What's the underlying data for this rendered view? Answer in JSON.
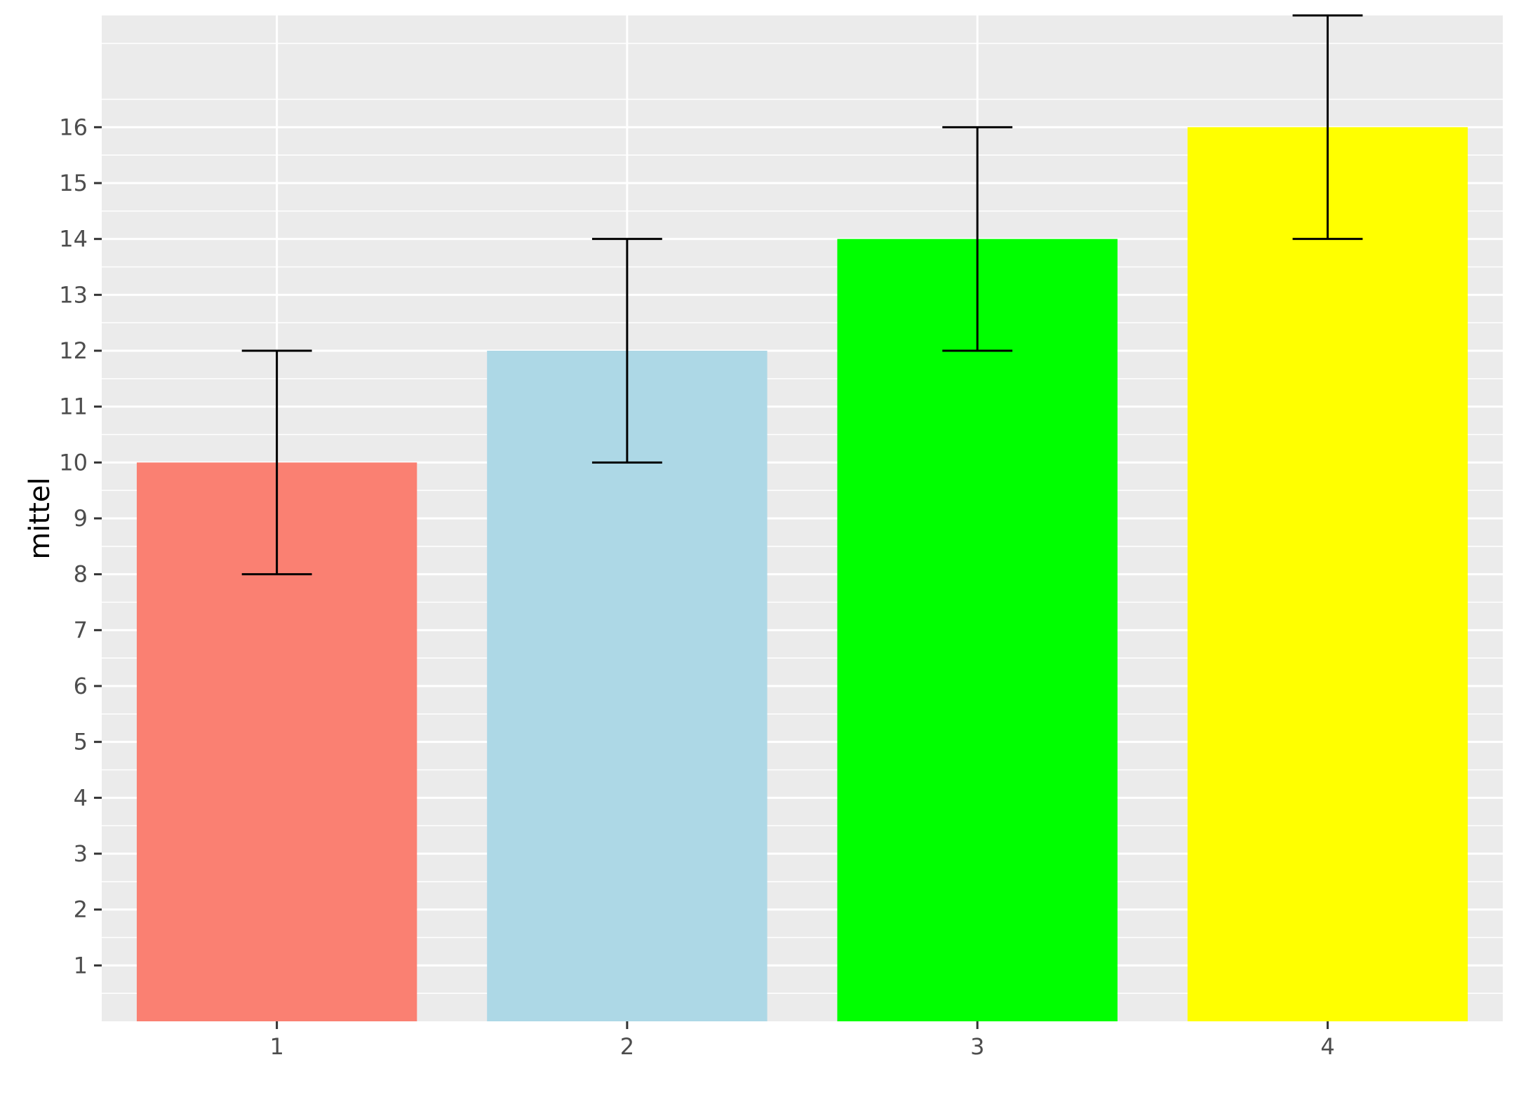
{
  "chart_data": {
    "type": "bar",
    "title": "",
    "xlabel": "",
    "ylabel": "mittel",
    "categories": [
      "1",
      "2",
      "3",
      "4"
    ],
    "values": [
      10,
      12,
      14,
      16
    ],
    "error_low": [
      8,
      10,
      12,
      14
    ],
    "error_high": [
      12,
      14,
      16,
      18
    ],
    "bar_colors": [
      "#fa8072",
      "#add8e6",
      "#00ff00",
      "#ffff00"
    ],
    "yticks": [
      "1",
      "2",
      "3",
      "4",
      "5",
      "6",
      "7",
      "8",
      "9",
      "10",
      "11",
      "12",
      "13",
      "14",
      "15",
      "16"
    ],
    "ylim": [
      0,
      18
    ],
    "grid": true,
    "legend": "none",
    "panel_background": "#ebebeb",
    "grid_color": "#ffffff"
  }
}
